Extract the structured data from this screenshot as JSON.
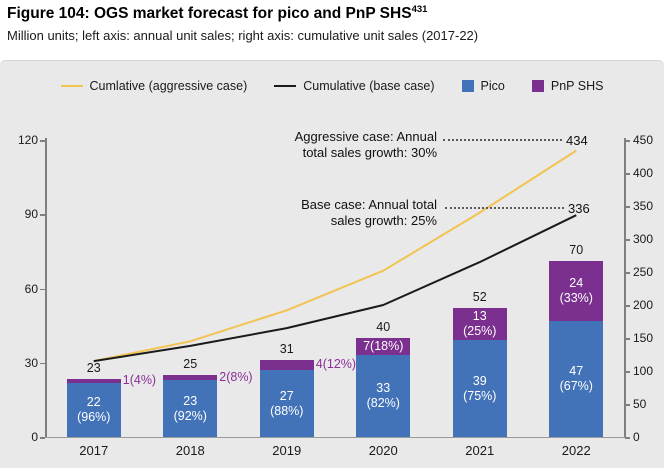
{
  "figure": {
    "title": "Figure 104: OGS market forecast for pico and PnP SHS",
    "title_superscript": "431",
    "subtitle": "Million units; left axis: annual unit sales; right axis: cumulative unit sales (2017-22)"
  },
  "legend": {
    "items": [
      {
        "label": "Cumlative (aggressive case)",
        "marker": "line",
        "color": "#F2C350"
      },
      {
        "label": "Cumulative (base case)",
        "marker": "line",
        "color": "#1A1A1A"
      },
      {
        "label": "Pico",
        "marker": "square",
        "color": "#4272B8"
      },
      {
        "label": "PnP SHS",
        "marker": "square",
        "color": "#7B2F8E"
      }
    ]
  },
  "annotations": {
    "aggressive": {
      "line1": "Aggressive case: Annual",
      "line2": "total sales growth: 30%",
      "value": "434"
    },
    "base": {
      "line1": "Base case: Annual total",
      "line2": "sales growth: 25%",
      "value": "336"
    }
  },
  "chart_data": {
    "type": "bar",
    "subtype": "stacked bars with cumulative lines",
    "categories": [
      "2017",
      "2018",
      "2019",
      "2020",
      "2021",
      "2022"
    ],
    "bar_series": [
      {
        "name": "Pico",
        "color": "#4272B8",
        "values": [
          22,
          23,
          27,
          33,
          39,
          47
        ],
        "pct": [
          "96%",
          "92%",
          "88%",
          "82%",
          "75%",
          "67%"
        ]
      },
      {
        "name": "PnP SHS",
        "color": "#7B2F8E",
        "values": [
          1,
          2,
          4,
          7,
          13,
          24
        ],
        "pct": [
          "4%",
          "8%",
          "12%",
          "18%",
          "25%",
          "33%"
        ]
      }
    ],
    "totals": [
      23,
      25,
      31,
      40,
      52,
      70
    ],
    "pnp_label_mode": [
      "outside",
      "outside",
      "outside",
      "inside1",
      "inside2",
      "inside2"
    ],
    "line_series": [
      {
        "name": "Cumlative (aggressive case)",
        "color": "#F2C350",
        "values": [
          115,
          145,
          192,
          252,
          340,
          434
        ],
        "end_label": "434"
      },
      {
        "name": "Cumulative (base case)",
        "color": "#1A1A1A",
        "values": [
          115,
          138,
          165,
          200,
          265,
          336
        ],
        "end_label": "336"
      }
    ],
    "left_axis": {
      "label": "annual unit sales (million units)",
      "ticks": [
        0,
        30,
        60,
        90,
        120
      ],
      "range": [
        0,
        120
      ]
    },
    "right_axis": {
      "label": "cumulative unit sales (million units)",
      "ticks": [
        0,
        50,
        100,
        150,
        200,
        250,
        300,
        350,
        400,
        450
      ],
      "range": [
        0,
        450
      ]
    },
    "grid": "off",
    "legend_position": "top"
  }
}
